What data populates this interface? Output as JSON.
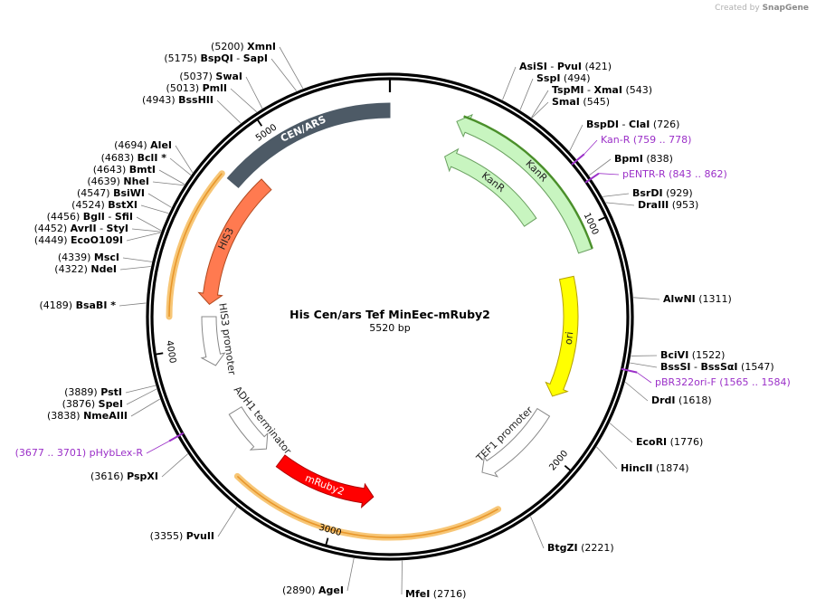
{
  "branding": {
    "prefix": "Created by",
    "name": "SnapGene"
  },
  "plasmid": {
    "name": "His Cen/ars Tef MinEec-mRuby2",
    "length_label": "5520 bp",
    "length": 5520
  },
  "ticks": [
    {
      "pos": 1000,
      "label": "1000"
    },
    {
      "pos": 2000,
      "label": "2000"
    },
    {
      "pos": 3000,
      "label": "3000"
    },
    {
      "pos": 4000,
      "label": "4000"
    },
    {
      "pos": 5000,
      "label": "5000"
    }
  ],
  "features": [
    {
      "id": "kanr-outer",
      "label": "KanR",
      "start": 290,
      "end": 1095,
      "ring": "outer",
      "color": "#c8f5c0",
      "stroke": "#6aa060",
      "highlight": "#4a8f2a"
    },
    {
      "id": "kanr-inner",
      "label": "KanR",
      "start": 290,
      "end": 860,
      "ring": "inner",
      "color": "#c8f5c0",
      "stroke": "#6aa060"
    },
    {
      "id": "cen-ars",
      "label": "CEN/ARS",
      "start": 4760,
      "end": 5520,
      "ring": "outer",
      "color": "#4d5a66",
      "stroke": "#4d5a66"
    },
    {
      "id": "ori",
      "label": "ori",
      "start": 1190,
      "end": 1780,
      "ring": "middle",
      "color": "#ffff00",
      "stroke": "#b5a000"
    },
    {
      "id": "tef1-promoter",
      "label": "TEF1 promoter",
      "start": 1870,
      "end": 2290,
      "ring": "middle",
      "color": "#ffffff",
      "stroke": "#888888"
    },
    {
      "id": "mruby2",
      "label": "mRuby2",
      "start": 2840,
      "end": 3330,
      "ring": "middle",
      "color": "#ff0000",
      "stroke": "#b00000"
    },
    {
      "id": "adh1-terminator",
      "label": "ADH1 terminator",
      "start": 3420,
      "end": 3660,
      "ring": "middle",
      "color": "#ffffff",
      "stroke": "#888888"
    },
    {
      "id": "his3",
      "label": "HIS3",
      "start": 4200,
      "end": 4860,
      "ring": "middle",
      "color": "#ff7a50",
      "stroke": "#b04a20"
    },
    {
      "id": "his3-promoter",
      "label": "HIS3 promoter",
      "start": 3900,
      "end": 4140,
      "ring": "middle",
      "color": "#ffffff",
      "stroke": "#888888"
    }
  ],
  "orange_arcs": [
    {
      "start": 2310,
      "end": 3430
    },
    {
      "start": 4140,
      "end": 4760
    }
  ],
  "primers": [
    {
      "label": "Kan-R",
      "range": "(759 .. 778)",
      "pos": 768
    },
    {
      "label": "pENTR-R",
      "range": "(843 .. 862)",
      "pos": 852
    },
    {
      "label": "pBR322ori-F",
      "range": "(1565 .. 1584)",
      "pos": 1575
    },
    {
      "label": "pHybLex-R",
      "range": "(3677 .. 3701)",
      "pos": 3689
    }
  ],
  "sites": [
    {
      "pos": 5200,
      "names": [
        "XmnI"
      ],
      "label": "(5200)"
    },
    {
      "pos": 5175,
      "names": [
        "BspQI",
        "SapI"
      ],
      "label": "(5175)"
    },
    {
      "pos": 5037,
      "names": [
        "SwaI"
      ],
      "label": "(5037)"
    },
    {
      "pos": 5013,
      "names": [
        "PmlI"
      ],
      "label": "(5013)"
    },
    {
      "pos": 4943,
      "names": [
        "BssHII"
      ],
      "label": "(4943)"
    },
    {
      "pos": 4694,
      "names": [
        "AleI"
      ],
      "label": "(4694)"
    },
    {
      "pos": 4683,
      "names": [
        "BclI *"
      ],
      "label": "(4683)"
    },
    {
      "pos": 4643,
      "names": [
        "BmtI"
      ],
      "label": "(4643)"
    },
    {
      "pos": 4639,
      "names": [
        "NheI"
      ],
      "label": "(4639)"
    },
    {
      "pos": 4547,
      "names": [
        "BsiWI"
      ],
      "label": "(4547)"
    },
    {
      "pos": 4524,
      "names": [
        "BstXI"
      ],
      "label": "(4524)"
    },
    {
      "pos": 4456,
      "names": [
        "BglI",
        "SfiI"
      ],
      "label": "(4456)"
    },
    {
      "pos": 4452,
      "names": [
        "AvrII",
        "StyI"
      ],
      "label": "(4452)"
    },
    {
      "pos": 4449,
      "names": [
        "EcoO109I"
      ],
      "label": "(4449)"
    },
    {
      "pos": 4339,
      "names": [
        "MscI"
      ],
      "label": "(4339)"
    },
    {
      "pos": 4322,
      "names": [
        "NdeI"
      ],
      "label": "(4322)"
    },
    {
      "pos": 4189,
      "names": [
        "BsaBI *"
      ],
      "label": "(4189)"
    },
    {
      "pos": 3889,
      "names": [
        "PstI"
      ],
      "label": "(3889)"
    },
    {
      "pos": 3876,
      "names": [
        "SpeI"
      ],
      "label": "(3876)"
    },
    {
      "pos": 3838,
      "names": [
        "NmeAIII"
      ],
      "label": "(3838)"
    },
    {
      "pos": 3616,
      "names": [
        "PspXI"
      ],
      "label": "(3616)"
    },
    {
      "pos": 3355,
      "names": [
        "PvuII"
      ],
      "label": "(3355)"
    },
    {
      "pos": 2890,
      "names": [
        "AgeI"
      ],
      "label": "(2890)"
    },
    {
      "pos": 2716,
      "names": [
        "MfeI"
      ],
      "label": "(2716)"
    },
    {
      "pos": 2221,
      "names": [
        "BtgZI"
      ],
      "label": "(2221)"
    },
    {
      "pos": 1874,
      "names": [
        "HincII"
      ],
      "label": "(1874)"
    },
    {
      "pos": 1776,
      "names": [
        "EcoRI"
      ],
      "label": "(1776)"
    },
    {
      "pos": 1618,
      "names": [
        "DrdI"
      ],
      "label": "(1618)"
    },
    {
      "pos": 1547,
      "names": [
        "BssSI",
        "BssSαI"
      ],
      "label": "(1547)"
    },
    {
      "pos": 1522,
      "names": [
        "BciVI"
      ],
      "label": "(1522)"
    },
    {
      "pos": 1311,
      "names": [
        "AlwNI"
      ],
      "label": "(1311)"
    },
    {
      "pos": 953,
      "names": [
        "DraIII"
      ],
      "label": "(953)"
    },
    {
      "pos": 929,
      "names": [
        "BsrDI"
      ],
      "label": "(929)"
    },
    {
      "pos": 838,
      "names": [
        "BpmI"
      ],
      "label": "(838)"
    },
    {
      "pos": 726,
      "names": [
        "BspDI",
        "ClaI"
      ],
      "label": "(726)"
    },
    {
      "pos": 545,
      "names": [
        "SmaI"
      ],
      "label": "(545)"
    },
    {
      "pos": 543,
      "names": [
        "TspMI",
        "XmaI"
      ],
      "label": "(543)"
    },
    {
      "pos": 494,
      "names": [
        "SspI"
      ],
      "label": "(494)"
    },
    {
      "pos": 421,
      "names": [
        "AsiSI",
        "PvuI"
      ],
      "label": "(421)"
    }
  ]
}
